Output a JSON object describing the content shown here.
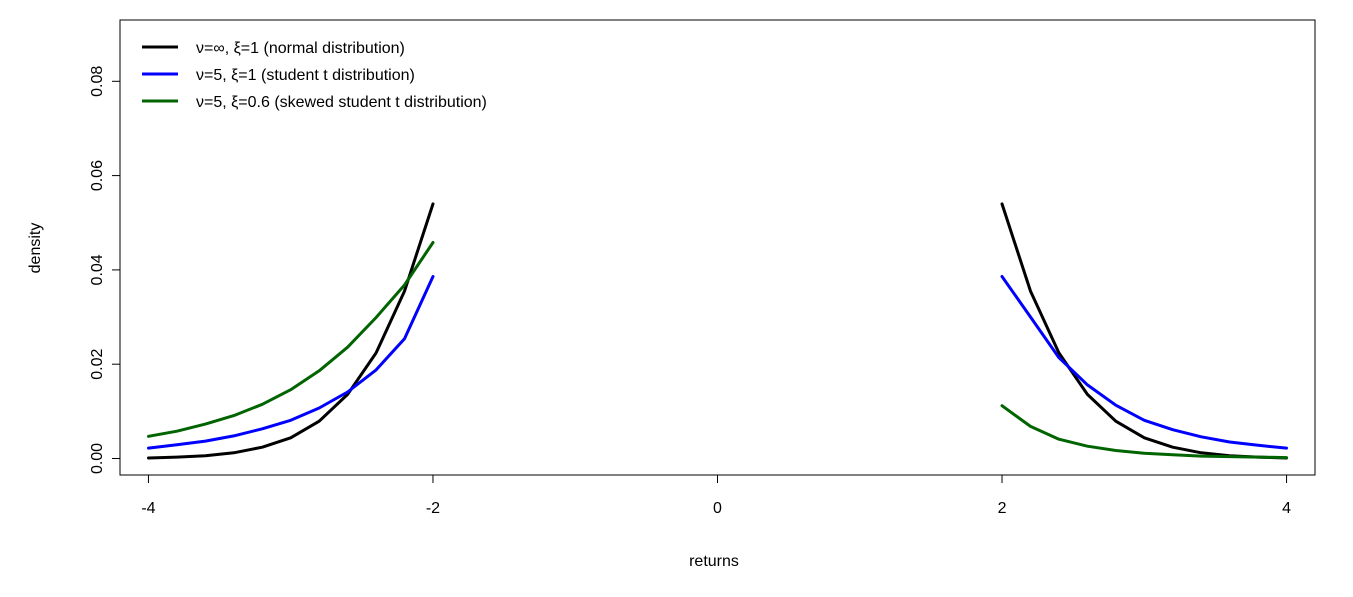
{
  "chart_data": {
    "type": "line",
    "title": "",
    "xlabel": "returns",
    "ylabel": "density",
    "xlim": [
      -4.2,
      4.2
    ],
    "ylim": [
      -0.0035,
      0.093
    ],
    "x_ticks": [
      -4,
      -2,
      0,
      2,
      4
    ],
    "x_tick_labels": [
      "-4",
      "-2",
      "0",
      "2",
      "4"
    ],
    "y_ticks": [
      0.0,
      0.02,
      0.04,
      0.06,
      0.08
    ],
    "y_tick_labels": [
      "0.00",
      "0.02",
      "0.04",
      "0.06",
      "0.08"
    ],
    "grid": false,
    "legend_position": "top-left",
    "series": [
      {
        "name": "ν=∞, ξ=1 (normal distribution)",
        "color": "#000000",
        "segments": [
          {
            "x": [
              -4.0,
              -3.8,
              -3.6,
              -3.4,
              -3.2,
              -3.0,
              -2.8,
              -2.6,
              -2.4,
              -2.2,
              -2.0
            ],
            "y": [
              0.0001,
              0.0003,
              0.0006,
              0.0012,
              0.0024,
              0.0044,
              0.0079,
              0.0136,
              0.0224,
              0.0355,
              0.054
            ]
          },
          {
            "x": [
              2.0,
              2.2,
              2.4,
              2.6,
              2.8,
              3.0,
              3.2,
              3.4,
              3.6,
              3.8,
              4.0
            ],
            "y": [
              0.054,
              0.0355,
              0.0224,
              0.0136,
              0.0079,
              0.0044,
              0.0024,
              0.0012,
              0.0006,
              0.0003,
              0.0001
            ]
          }
        ]
      },
      {
        "name": "ν=5, ξ=1 (student t distribution)",
        "color": "#0000ff",
        "segments": [
          {
            "x": [
              -4.0,
              -3.8,
              -3.6,
              -3.4,
              -3.2,
              -3.0,
              -2.8,
              -2.6,
              -2.4,
              -2.2,
              -2.0
            ],
            "y": [
              0.0022,
              0.0029,
              0.0037,
              0.0048,
              0.0063,
              0.0081,
              0.0107,
              0.0141,
              0.0188,
              0.0254,
              0.0386
            ]
          },
          {
            "x": [
              2.0,
              2.2,
              2.4,
              2.6,
              2.8,
              3.0,
              3.2,
              3.4,
              3.6,
              3.8,
              4.0
            ],
            "y": [
              0.0386,
              0.03,
              0.0214,
              0.0156,
              0.0113,
              0.0081,
              0.0061,
              0.0046,
              0.0035,
              0.0028,
              0.0022
            ]
          }
        ]
      },
      {
        "name": "ν=5, ξ=0.6 (skewed student t distribution)",
        "color": "#006400",
        "segments": [
          {
            "x": [
              -4.0,
              -3.8,
              -3.6,
              -3.4,
              -3.2,
              -3.0,
              -2.8,
              -2.6,
              -2.4,
              -2.2,
              -2.0
            ],
            "y": [
              0.0047,
              0.0058,
              0.0073,
              0.0091,
              0.0115,
              0.0146,
              0.0186,
              0.0236,
              0.0299,
              0.0368,
              0.0458
            ]
          },
          {
            "x": [
              2.0,
              2.2,
              2.4,
              2.6,
              2.8,
              3.0,
              3.2,
              3.4,
              3.6,
              3.8,
              4.0
            ],
            "y": [
              0.0112,
              0.0068,
              0.0041,
              0.0026,
              0.0017,
              0.0011,
              0.0008,
              0.0005,
              0.0004,
              0.0003,
              0.0002
            ]
          }
        ]
      }
    ]
  }
}
